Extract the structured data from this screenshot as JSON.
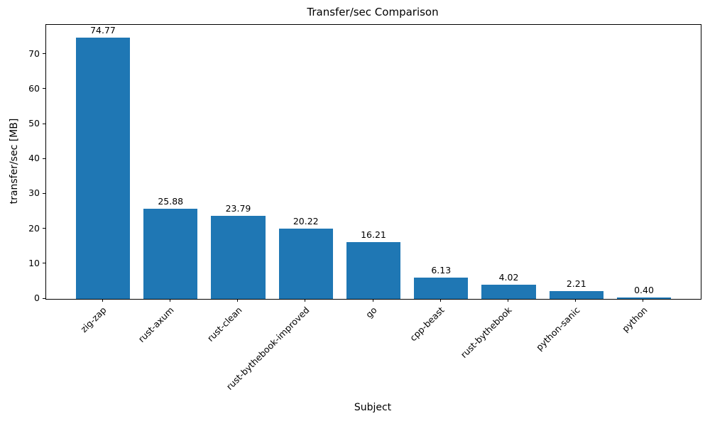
{
  "chart_data": {
    "type": "bar",
    "title": "Transfer/sec Comparison",
    "xlabel": "Subject",
    "ylabel": "transfer/sec [MB]",
    "categories": [
      "zig-zap",
      "rust-axum",
      "rust-clean",
      "rust-bythebook-improved",
      "go",
      "cpp-beast",
      "rust-bythebook",
      "python-sanic",
      "python"
    ],
    "values": [
      74.77,
      25.88,
      23.79,
      20.22,
      16.21,
      6.13,
      4.02,
      2.21,
      0.4
    ],
    "value_labels": [
      "74.77",
      "25.88",
      "23.79",
      "20.22",
      "16.21",
      "6.13",
      "4.02",
      "2.21",
      "0.40"
    ],
    "yticks": [
      0,
      10,
      20,
      30,
      40,
      50,
      60,
      70
    ],
    "ylim": [
      0,
      78.5
    ],
    "bar_color": "#1f77b4",
    "grid": false,
    "legend": null,
    "x_tick_rotation": 45
  }
}
